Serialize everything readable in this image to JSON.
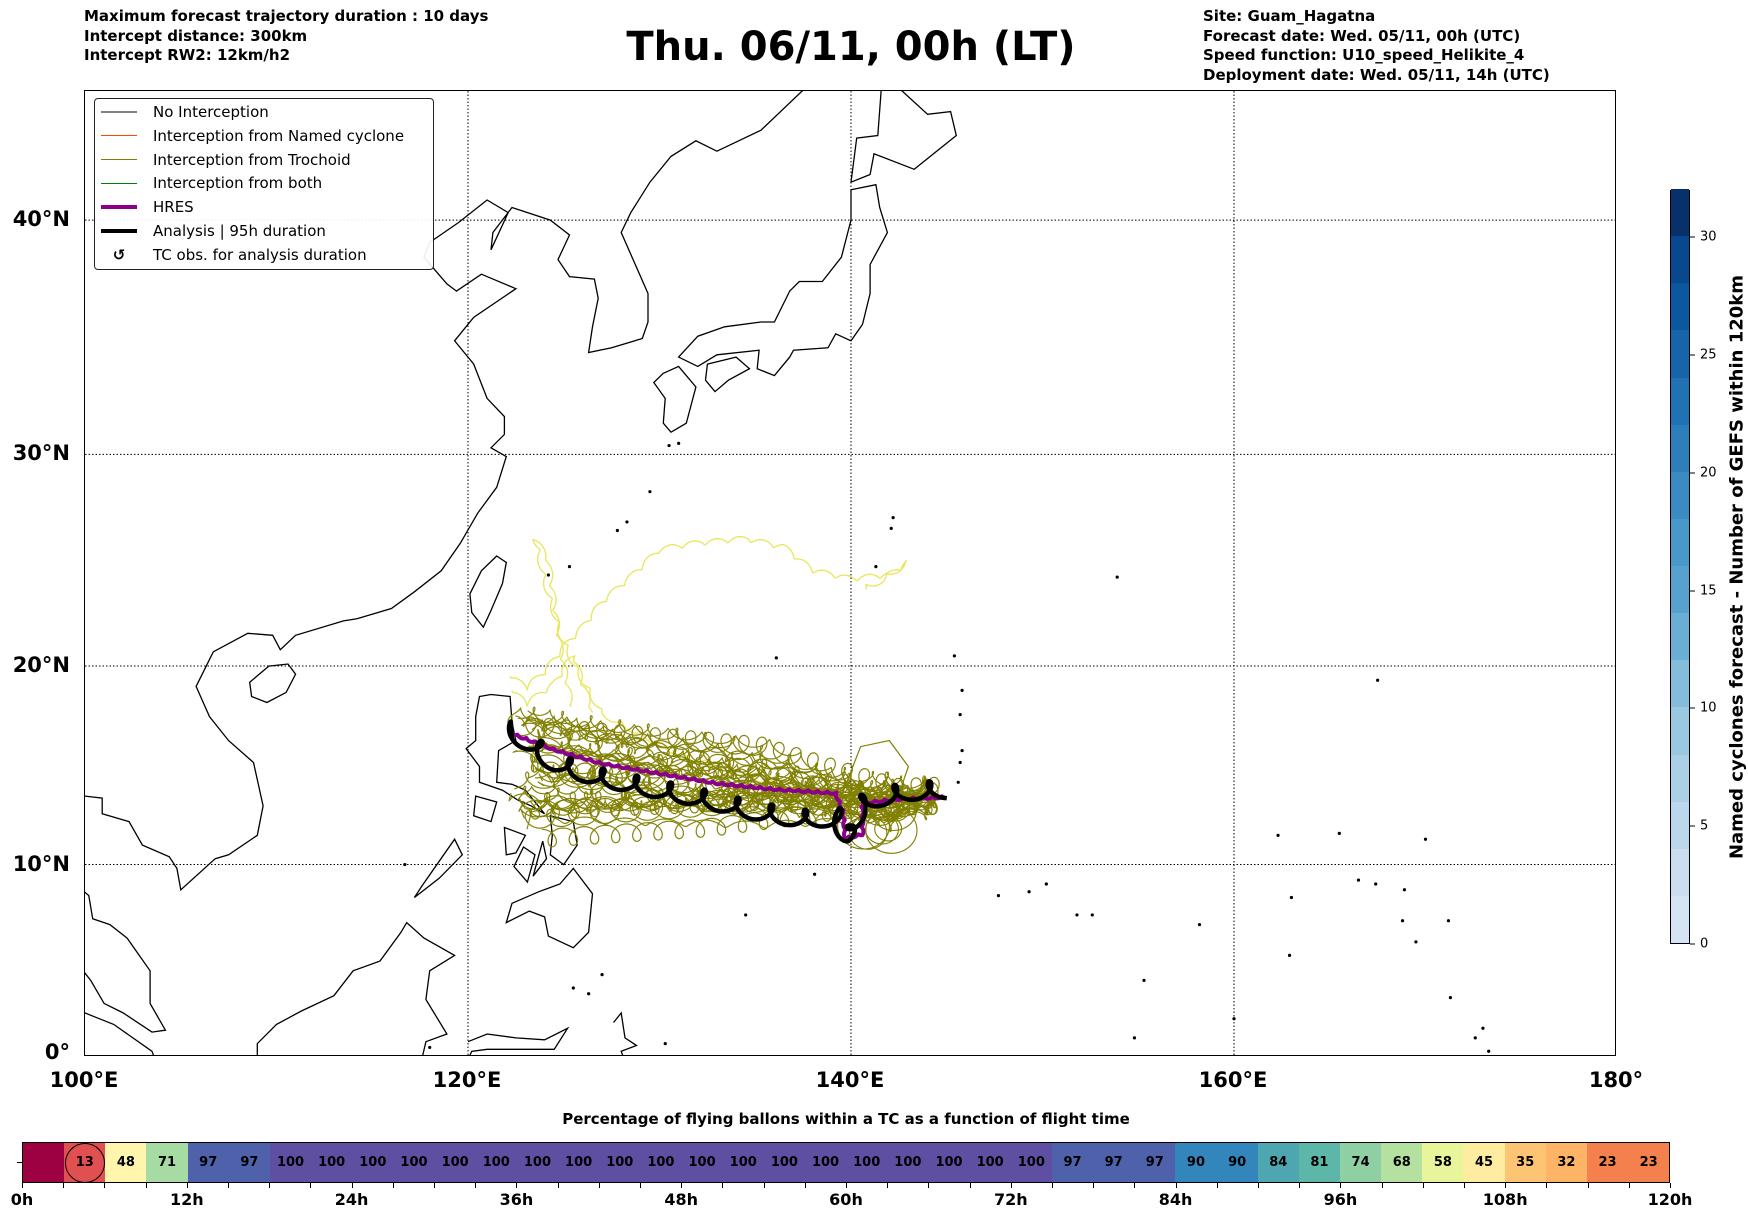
{
  "header": {
    "left": [
      "Maximum forecast trajectory duration : 10 days",
      "Intercept distance: 300km",
      "Intercept RW2: 12km/h2"
    ],
    "title": "Thu. 06/11, 00h (LT)",
    "right": [
      "Site: Guam_Hagatna",
      "Forecast date: Wed. 05/11, 00h (UTC)",
      "Speed function: U10_speed_Helikite_4",
      "Deployment date: Wed. 05/11, 14h (UTC)"
    ]
  },
  "map": {
    "lat_labels": [
      "40°N",
      "30°N",
      "20°N",
      "10°N",
      "0°"
    ],
    "lat_values": [
      40,
      30,
      20,
      10,
      0
    ],
    "lon_labels": [
      "100°E",
      "120°E",
      "140°E",
      "160°E",
      "180°"
    ],
    "lon_values": [
      100,
      120,
      140,
      160,
      180
    ],
    "extent": {
      "lon": [
        100,
        180
      ],
      "lat": [
        0,
        45
      ]
    }
  },
  "legend": [
    {
      "label": "No Interception",
      "color": "#808080",
      "style": "thin"
    },
    {
      "label": "Interception from Named cyclone",
      "color": "#ff4500",
      "style": "thin"
    },
    {
      "label": "Interception from Trochoid",
      "color": "#808000",
      "style": "thin"
    },
    {
      "label": "Interception from both",
      "color": "#008000",
      "style": "thin"
    },
    {
      "label": "HRES",
      "color": "#8b008b",
      "style": "thick"
    },
    {
      "label": "Analysis | 95h duration",
      "color": "#000000",
      "style": "thick"
    },
    {
      "label": "TC obs. for analysis duration",
      "color": "#000000",
      "style": "marker",
      "symbol": "↺"
    }
  ],
  "colorbar": {
    "label": "Named cyclones forecast - Number of GEFS within 120km",
    "range": [
      0,
      32
    ],
    "ticks": [
      "0",
      "5",
      "10",
      "15",
      "20",
      "25",
      "30"
    ],
    "tick_values": [
      0,
      5,
      10,
      15,
      20,
      25,
      30
    ],
    "bin_colors": [
      "#d4e4f4",
      "#cadef0",
      "#bcd7eb",
      "#abd0e6",
      "#9ac8e0",
      "#84bcdb",
      "#6aaed6",
      "#58a1cf",
      "#4a98c9",
      "#3b8bc2",
      "#2e7ebc",
      "#2171b5",
      "#1764ab",
      "#0d57a1",
      "#08488e",
      "#08306b"
    ]
  },
  "timeline": {
    "title": "Percentage of flying ballons within a TC as a function of flight time",
    "values": [
      "",
      "13",
      "48",
      "71",
      "97",
      "97",
      "100",
      "100",
      "100",
      "100",
      "100",
      "100",
      "100",
      "100",
      "100",
      "100",
      "100",
      "100",
      "100",
      "100",
      "100",
      "100",
      "100",
      "100",
      "100",
      "97",
      "97",
      "97",
      "90",
      "90",
      "84",
      "81",
      "74",
      "68",
      "58",
      "45",
      "35",
      "32",
      "23",
      "23"
    ],
    "colors": [
      "#9e0142",
      "#e15050",
      "#fff5ad",
      "#a6dba4",
      "#4f61aa",
      "#4f61aa",
      "#5e4fa2",
      "#5e4fa2",
      "#5e4fa2",
      "#5e4fa2",
      "#5e4fa2",
      "#5e4fa2",
      "#5e4fa2",
      "#5e4fa2",
      "#5e4fa2",
      "#5e4fa2",
      "#5e4fa2",
      "#5e4fa2",
      "#5e4fa2",
      "#5e4fa2",
      "#5e4fa2",
      "#5e4fa2",
      "#5e4fa2",
      "#5e4fa2",
      "#5e4fa2",
      "#4f61aa",
      "#4f61aa",
      "#4f61aa",
      "#3386bc",
      "#3386bc",
      "#4ea6b0",
      "#5db7a9",
      "#8ed0a4",
      "#b4e0a0",
      "#e8f59b",
      "#feeda0",
      "#fdc473",
      "#fdb466",
      "#f4804d",
      "#f4804d"
    ],
    "highlight_index": 1,
    "tick_labels": [
      "0h",
      "12h",
      "24h",
      "36h",
      "48h",
      "60h",
      "72h",
      "84h",
      "96h",
      "108h",
      "120h"
    ],
    "max_hours": 120
  },
  "chart_data": {
    "type": "map-trajectories",
    "site": {
      "name": "Guam_Hagatna",
      "lon": 144.75,
      "lat": 13.47
    },
    "analysis_track": [
      [
        145.0,
        13.4
      ],
      [
        143,
        13.3
      ],
      [
        141,
        12.9
      ],
      [
        140.3,
        12.4
      ],
      [
        140.2,
        11.1
      ],
      [
        139.5,
        11.0
      ],
      [
        139.6,
        12.0
      ],
      [
        137.5,
        11.9
      ],
      [
        135,
        12.3
      ],
      [
        132,
        13.0
      ],
      [
        129,
        13.6
      ],
      [
        126.5,
        14.1
      ],
      [
        124.5,
        14.8
      ],
      [
        122.3,
        16.4
      ]
    ],
    "hres_track": [
      [
        145.0,
        13.4
      ],
      [
        142.5,
        13.3
      ],
      [
        140.6,
        13.1
      ],
      [
        140.6,
        11.5
      ],
      [
        139.7,
        11.3
      ],
      [
        139.6,
        12.6
      ],
      [
        139.2,
        13.6
      ],
      [
        136,
        13.8
      ],
      [
        133,
        14.1
      ],
      [
        130,
        14.6
      ],
      [
        127,
        15.1
      ],
      [
        124.5,
        15.8
      ],
      [
        122.3,
        16.6
      ]
    ],
    "ensemble_count": 40
  }
}
